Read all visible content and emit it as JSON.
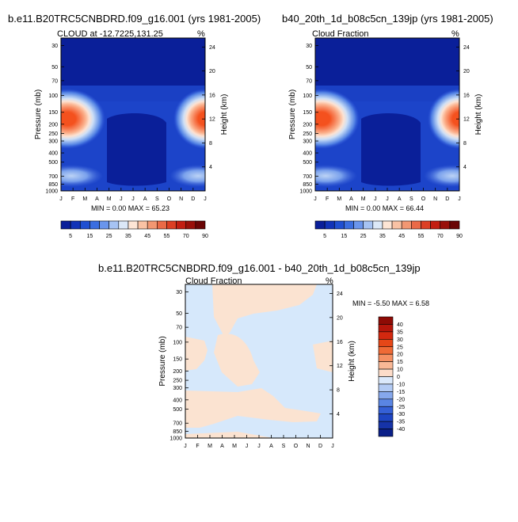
{
  "months": [
    "J",
    "F",
    "M",
    "A",
    "M",
    "J",
    "J",
    "A",
    "S",
    "O",
    "N",
    "D",
    "J"
  ],
  "pressure_ticks": [
    "30",
    "50",
    "70",
    "100",
    "150",
    "200",
    "250",
    "300",
    "400",
    "500",
    "700",
    "850",
    "1000"
  ],
  "height_ticks": [
    "24",
    "20",
    "16",
    "12",
    "8",
    "4"
  ],
  "axis": {
    "pressure_label": "Pressure (mb)",
    "height_label": "Height (km)",
    "units": "%"
  },
  "chart_data": [
    {
      "type": "heatmap",
      "title": "b.e11.B20TRC5CNBDRD.f09_g16.001 (yrs 1981-2005)",
      "subtitle": "CLOUD at -12.7225,131.25",
      "units": "%",
      "min_label": "MIN =   0.00 MAX =  65.23",
      "min": 0.0,
      "max": 65.23,
      "colorbar_labels": [
        "5",
        "15",
        "25",
        "35",
        "45",
        "55",
        "70",
        "90"
      ],
      "colorbar_levels": [
        5,
        10,
        15,
        20,
        25,
        30,
        35,
        40,
        45,
        50,
        55,
        60,
        70,
        80,
        90
      ]
    },
    {
      "type": "heatmap",
      "title": "b40_20th_1d_b08c5cn_139jp (yrs 1981-2005)",
      "subtitle": "Cloud Fraction",
      "units": "%",
      "min_label": "MIN =   0.00 MAX =  66.44",
      "min": 0.0,
      "max": 66.44,
      "colorbar_labels": [
        "5",
        "15",
        "25",
        "35",
        "45",
        "55",
        "70",
        "90"
      ],
      "colorbar_levels": [
        5,
        10,
        15,
        20,
        25,
        30,
        35,
        40,
        45,
        50,
        55,
        60,
        70,
        80,
        90
      ]
    },
    {
      "type": "heatmap",
      "title": "b.e11.B20TRC5CNBDRD.f09_g16.001 - b40_20th_1d_b08c5cn_139jp",
      "subtitle": "Cloud Fraction",
      "units": "%",
      "min_label": "MIN =  -5.50 MAX =   6.58",
      "min": -5.5,
      "max": 6.58,
      "colorbar_labels": [
        "40",
        "35",
        "30",
        "25",
        "20",
        "15",
        "10",
        "0",
        "-10",
        "-15",
        "-20",
        "-25",
        "-30",
        "-35",
        "-40"
      ]
    }
  ],
  "colors": {
    "seq": [
      "#0a1f99",
      "#1133b8",
      "#1f4fd1",
      "#3b6ee0",
      "#6a95ec",
      "#a6c3f3",
      "#dbe8f8",
      "#fde5d5",
      "#f9c2a4",
      "#f29772",
      "#ea6a47",
      "#dc3f24",
      "#c21e12",
      "#99100a",
      "#6b0606"
    ],
    "diff_pos": "#fbe3d1",
    "diff_neg": "#d6e8fb"
  }
}
